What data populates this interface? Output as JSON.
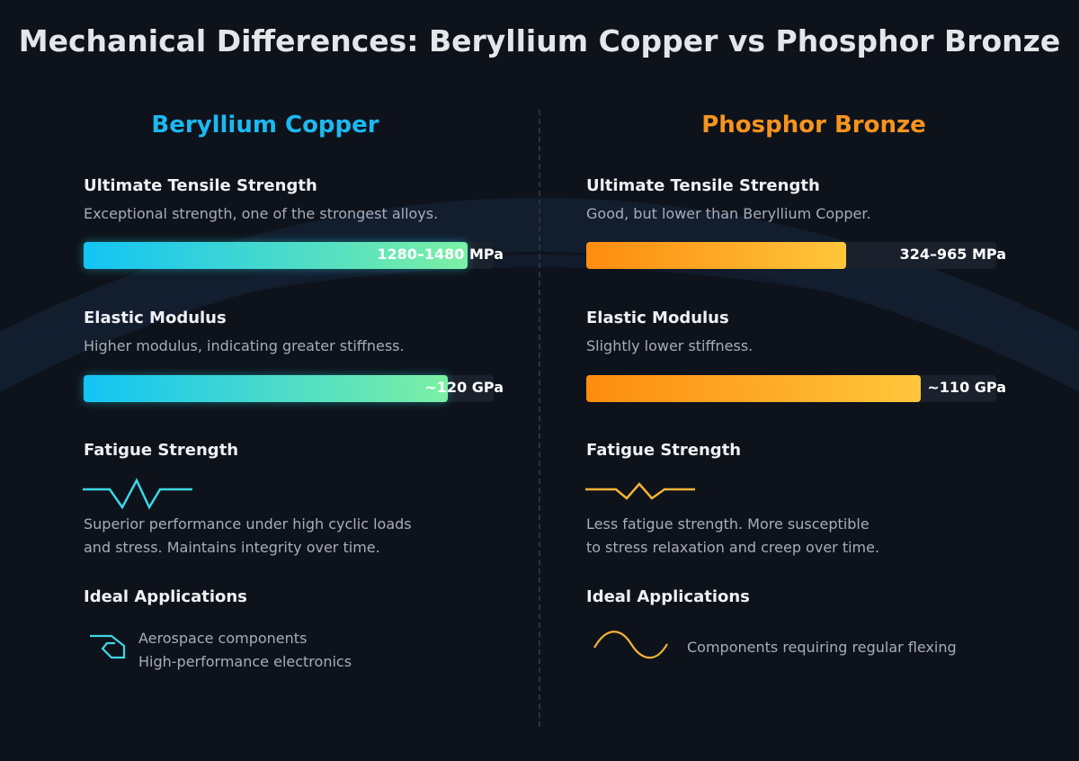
{
  "title": "Mechanical Differences: Beryllium Copper vs Phosphor Bronze",
  "columns": [
    {
      "heading": "Beryllium Copper",
      "tensile": {
        "heading": "Ultimate Tensile Strength",
        "description": "Exceptional strength, one of the strongest alloys.",
        "value": "1280–1480 MPa"
      },
      "elastic": {
        "heading": "Elastic Modulus",
        "description": "Higher modulus, indicating greater stiffness.",
        "value": "~120 GPa"
      },
      "fatigue": {
        "heading": "Fatigue Strength",
        "lines": [
          "Superior performance under high cyclic loads",
          "and stress. Maintains integrity over time."
        ]
      },
      "applications": {
        "heading": "Ideal Applications",
        "items": [
          "Aerospace components",
          "High-performance electronics"
        ]
      }
    },
    {
      "heading": "Phosphor Bronze",
      "tensile": {
        "heading": "Ultimate Tensile Strength",
        "description": "Good, but lower than Beryllium Copper.",
        "value": "324–965 MPa"
      },
      "elastic": {
        "heading": "Elastic Modulus",
        "description": "Slightly lower stiffness.",
        "value": "~110 GPa"
      },
      "fatigue": {
        "heading": "Fatigue Strength",
        "lines": [
          "Less fatigue strength. More susceptible",
          "to stress relaxation and creep over time."
        ]
      },
      "applications": {
        "heading": "Ideal Applications",
        "items": [
          "Components requiring regular flexing"
        ]
      }
    }
  ]
}
